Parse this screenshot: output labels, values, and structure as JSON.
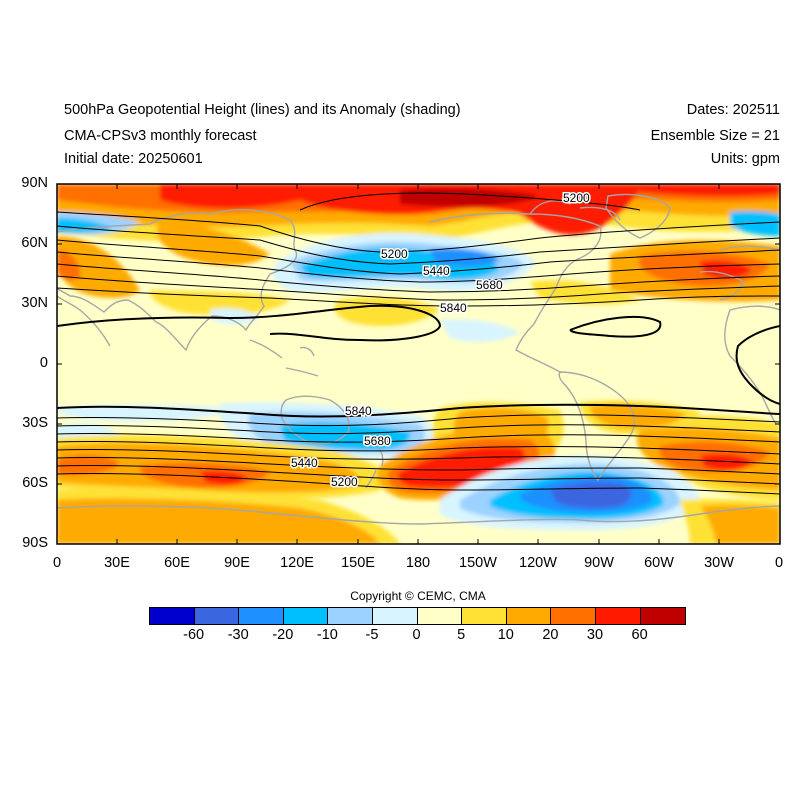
{
  "header": {
    "title": "500hPa Geopotential Height (lines) and its Anomaly (shading)",
    "model": "CMA-CPSv3 monthly forecast",
    "initial_date": "Initial date: 20250601",
    "dates": "Dates: 202511",
    "ensemble": "Ensemble Size = 21",
    "units": "Units: gpm"
  },
  "axes": {
    "lat_ticks": [
      "90N",
      "60N",
      "30N",
      "0",
      "30S",
      "60S",
      "90S"
    ],
    "lon_ticks": [
      "0",
      "30E",
      "60E",
      "90E",
      "120E",
      "150E",
      "180",
      "150W",
      "120W",
      "90W",
      "60W",
      "30W",
      "0"
    ]
  },
  "contour_labels": [
    "5200",
    "5200",
    "5440",
    "5680",
    "5840",
    "5840",
    "5680",
    "5440",
    "5200"
  ],
  "copyright": "Copyright © CEMC, CMA",
  "colorbar": {
    "labels": [
      "-60",
      "-30",
      "-20",
      "-10",
      "-5",
      "0",
      "5",
      "10",
      "20",
      "30",
      "60"
    ],
    "colors": [
      "#0000cd",
      "#3a66e0",
      "#1e90ff",
      "#00bfff",
      "#9cd2ff",
      "#d8f4ff",
      "#ffffc8",
      "#ffe135",
      "#ffaa00",
      "#ff7000",
      "#ff1a00",
      "#c00000"
    ]
  }
}
